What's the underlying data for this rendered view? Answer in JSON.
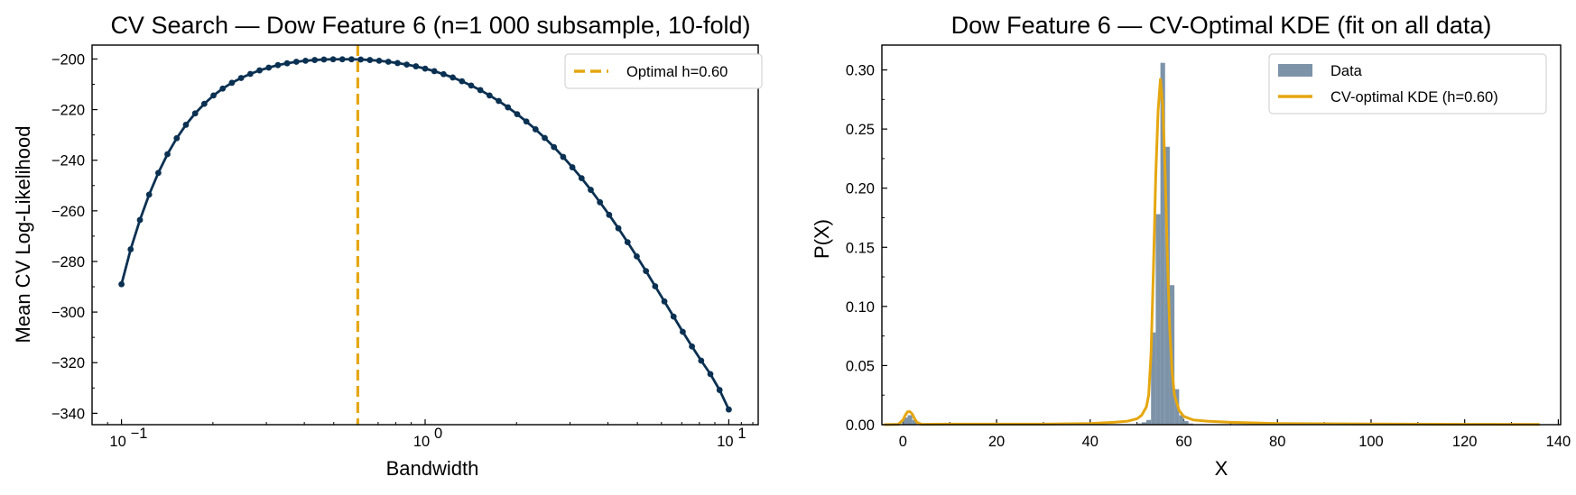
{
  "colors": {
    "line": "#0b3152",
    "optimal": "#e5a710",
    "hist": "#7d93a8",
    "kde": "#e5a710"
  },
  "chart_data": [
    {
      "type": "line",
      "title": "CV Search — Dow Feature 6 (n=1 000 subsample, 10-fold)",
      "xlabel": "Bandwidth",
      "ylabel": "Mean CV Log-Likelihood",
      "xscale": "log",
      "xlim": [
        0.08,
        12.5
      ],
      "ylim": [
        -344.5,
        -194.5
      ],
      "x_ticks": [
        {
          "value": 0.1,
          "label": "10",
          "exp": "−1"
        },
        {
          "value": 1,
          "label": "10",
          "exp": "0"
        },
        {
          "value": 10,
          "label": "10",
          "exp": "1"
        }
      ],
      "y_ticks": [
        -200,
        -220,
        -240,
        -260,
        -280,
        -300,
        -320,
        -340
      ],
      "y_tick_labels": [
        "−200",
        "−220",
        "−240",
        "−260",
        "−280",
        "−300",
        "−320",
        "−340"
      ],
      "optimal_h": 0.6,
      "legend": [
        {
          "label": "Optimal h=0.60",
          "style": "dashed"
        }
      ],
      "legend_position": "top-right",
      "series": [
        {
          "x": [
            0.1,
            0.1072,
            0.115,
            0.1233,
            0.1322,
            0.1417,
            0.152,
            0.163,
            0.1748,
            0.1874,
            0.2009,
            0.2154,
            0.231,
            0.2477,
            0.2656,
            0.2848,
            0.3054,
            0.3275,
            0.3511,
            0.3765,
            0.4037,
            0.4329,
            0.4642,
            0.4977,
            0.5337,
            0.5722,
            0.6136,
            0.6579,
            0.7055,
            0.7565,
            0.8111,
            0.8697,
            0.9326,
            1.0,
            1.0723,
            1.1498,
            1.2328,
            1.3219,
            1.4175,
            1.5199,
            1.6298,
            1.7475,
            1.8738,
            2.0092,
            2.1544,
            2.3101,
            2.4771,
            2.6561,
            2.848,
            3.0539,
            3.2745,
            3.5112,
            3.7649,
            4.037,
            4.3288,
            4.6416,
            4.977,
            5.3367,
            5.7224,
            6.1359,
            6.5793,
            7.0548,
            7.5646,
            8.1113,
            8.6975,
            9.326,
            10.0
          ],
          "y": [
            -289.0,
            -275.2,
            -263.6,
            -253.6,
            -245.0,
            -237.6,
            -231.3,
            -226.0,
            -221.5,
            -217.7,
            -214.4,
            -211.7,
            -209.4,
            -207.5,
            -205.9,
            -204.5,
            -203.4,
            -202.4,
            -201.7,
            -201.1,
            -200.7,
            -200.4,
            -200.2,
            -200.1,
            -200.1,
            -200.1,
            -200.2,
            -200.4,
            -200.7,
            -201.1,
            -201.6,
            -202.2,
            -202.9,
            -203.8,
            -204.8,
            -206.0,
            -207.3,
            -208.8,
            -210.5,
            -212.3,
            -214.4,
            -216.6,
            -219.1,
            -221.8,
            -224.7,
            -227.8,
            -231.2,
            -234.8,
            -238.7,
            -242.8,
            -247.1,
            -251.7,
            -256.6,
            -261.6,
            -266.9,
            -272.4,
            -278.0,
            -283.8,
            -289.8,
            -295.8,
            -301.8,
            -307.8,
            -313.6,
            -319.2,
            -324.5,
            -330.8,
            -338.5
          ]
        }
      ]
    },
    {
      "type": "bar",
      "title": "Dow Feature 6 — CV-Optimal KDE (fit on all data)",
      "xlabel": "X",
      "ylabel": "P(X)",
      "xlim": [
        -4.5,
        140.5
      ],
      "ylim": [
        0,
        0.321
      ],
      "x_ticks": [
        0,
        20,
        40,
        60,
        80,
        100,
        120,
        140
      ],
      "y_ticks": [
        0.0,
        0.05,
        0.1,
        0.15,
        0.2,
        0.25,
        0.3
      ],
      "y_tick_labels": [
        "0.00",
        "0.05",
        "0.10",
        "0.15",
        "0.20",
        "0.25",
        "0.30"
      ],
      "legend": [
        {
          "label": "Data",
          "style": "patch"
        },
        {
          "label": "CV-optimal KDE (h=0.60)",
          "style": "line"
        }
      ],
      "legend_position": "top-right",
      "histogram": {
        "bin_edges": [
          0,
          1,
          2,
          3,
          50,
          51,
          52,
          53,
          54,
          55,
          56,
          57,
          58,
          59,
          60,
          61,
          62
        ],
        "heights": [
          0.006,
          0.008,
          0.004,
          0,
          0.001,
          0.002,
          0.004,
          0.078,
          0.178,
          0.306,
          0.235,
          0.118,
          0.03,
          0.008,
          0.003,
          0.001
        ]
      },
      "kde": {
        "x": [
          -4,
          -1,
          0,
          0.5,
          1,
          1.5,
          2,
          2.5,
          3,
          4,
          10,
          20,
          30,
          40,
          45,
          48,
          50,
          51,
          52,
          52.5,
          53,
          53.5,
          54,
          54.5,
          55,
          55.5,
          56,
          56.5,
          57,
          57.5,
          58,
          59,
          60,
          62,
          65,
          70,
          80,
          100,
          120,
          136
        ],
        "y": [
          0,
          0.0003,
          0.004,
          0.008,
          0.011,
          0.011,
          0.009,
          0.005,
          0.002,
          0.0003,
          0.0005,
          0.0005,
          0.0005,
          0.001,
          0.002,
          0.003,
          0.005,
          0.008,
          0.015,
          0.025,
          0.06,
          0.13,
          0.21,
          0.265,
          0.292,
          0.27,
          0.215,
          0.14,
          0.08,
          0.045,
          0.025,
          0.012,
          0.007,
          0.004,
          0.003,
          0.002,
          0.001,
          0.0006,
          0.0003,
          0.0002
        ]
      }
    }
  ]
}
